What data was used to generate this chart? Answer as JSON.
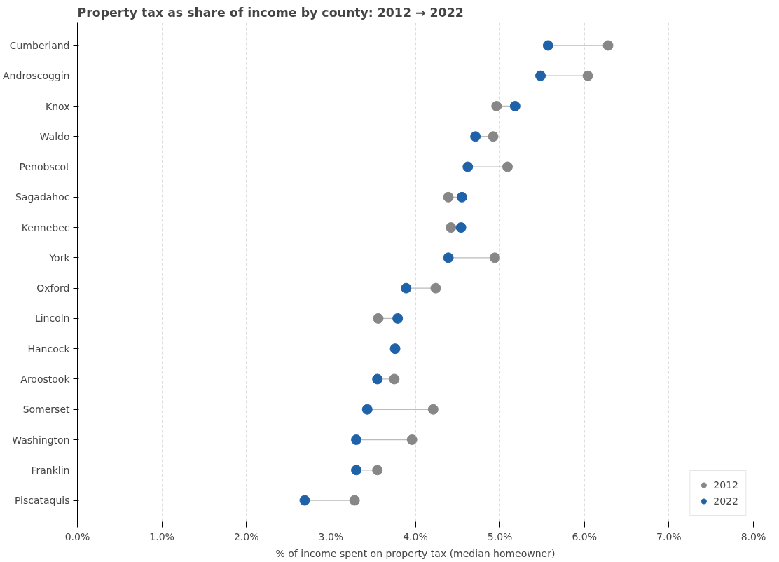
{
  "chart_data": {
    "type": "scatter",
    "orientation": "horizontal",
    "title": "Property tax as share of income by county: 2012 → 2022",
    "xlabel": "% of income spent on property tax (median homeowner)",
    "categories": [
      "Cumberland",
      "Androscoggin",
      "Knox",
      "Waldo",
      "Penobscot",
      "Sagadahoc",
      "Kennebec",
      "York",
      "Oxford",
      "Lincoln",
      "Hancock",
      "Aroostook",
      "Somerset",
      "Washington",
      "Franklin",
      "Piscataquis"
    ],
    "series": [
      {
        "name": "2012",
        "color": "#878787",
        "values": [
          6.28,
          6.04,
          4.96,
          4.92,
          5.09,
          4.39,
          4.42,
          4.94,
          4.24,
          3.56,
          null,
          3.75,
          4.21,
          3.96,
          3.55,
          3.28
        ]
      },
      {
        "name": "2022",
        "color": "#1f62a8",
        "values": [
          5.57,
          5.48,
          5.18,
          4.71,
          4.62,
          4.55,
          4.54,
          4.39,
          3.89,
          3.79,
          3.76,
          3.55,
          3.43,
          3.3,
          3.3,
          2.69
        ]
      }
    ],
    "xlim": [
      0,
      8
    ],
    "xticks": [
      {
        "value": 0,
        "label": "0.0%"
      },
      {
        "value": 1,
        "label": "1.0%"
      },
      {
        "value": 2,
        "label": "2.0%"
      },
      {
        "value": 3,
        "label": "3.0%"
      },
      {
        "value": 4,
        "label": "4.0%"
      },
      {
        "value": 5,
        "label": "5.0%"
      },
      {
        "value": 6,
        "label": "6.0%"
      },
      {
        "value": 7,
        "label": "7.0%"
      },
      {
        "value": 8,
        "label": "8.0%"
      }
    ],
    "grid": "x",
    "legend": "bottom right",
    "marker": "circle"
  }
}
